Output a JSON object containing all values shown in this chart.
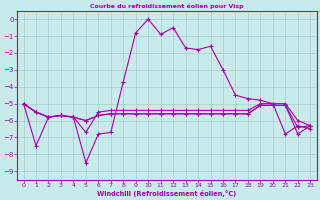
{
  "title": "Courbe du refroidissement éolien pour Visp",
  "xlabel": "Windchill (Refroidissement éolien,°C)",
  "background_color": "#c8eaea",
  "grid_color": "#aacccc",
  "line_color": "#aa00aa",
  "xlim": [
    -0.5,
    23.5
  ],
  "ylim": [
    -9.5,
    0.5
  ],
  "yticks": [
    0,
    -1,
    -2,
    -3,
    -4,
    -5,
    -6,
    -7,
    -8,
    -9
  ],
  "xticks": [
    0,
    1,
    2,
    3,
    4,
    5,
    6,
    7,
    8,
    9,
    10,
    11,
    12,
    13,
    14,
    15,
    16,
    17,
    18,
    19,
    20,
    21,
    22,
    23
  ],
  "line1_x": [
    0,
    1,
    2,
    3,
    4,
    5,
    6,
    7,
    8,
    9,
    10,
    11,
    12,
    13,
    14,
    15,
    16,
    17,
    18,
    19,
    20,
    21,
    22,
    23
  ],
  "line1_y": [
    -5.0,
    -7.5,
    -5.8,
    -5.7,
    -5.8,
    -8.5,
    -6.8,
    -6.7,
    -3.7,
    -0.8,
    0.0,
    -0.9,
    -0.5,
    -1.7,
    -1.8,
    -1.6,
    -3.0,
    -4.5,
    -4.7,
    -4.8,
    -5.0,
    -6.8,
    -6.3,
    -6.5
  ],
  "line2_x": [
    0,
    1,
    2,
    3,
    4,
    5,
    6,
    7,
    8,
    9,
    10,
    11,
    12,
    13,
    14,
    15,
    16,
    17,
    18,
    19,
    20,
    21,
    22,
    23
  ],
  "line2_y": [
    -5.0,
    -5.5,
    -5.8,
    -5.7,
    -5.8,
    -6.7,
    -5.5,
    -5.4,
    -5.4,
    -5.4,
    -5.4,
    -5.4,
    -5.4,
    -5.4,
    -5.4,
    -5.4,
    -5.4,
    -5.4,
    -5.4,
    -5.0,
    -5.0,
    -5.0,
    -6.0,
    -6.3
  ],
  "line3_x": [
    0,
    1,
    2,
    3,
    4,
    5,
    6,
    7,
    8,
    9,
    10,
    11,
    12,
    13,
    14,
    15,
    16,
    17,
    18,
    19,
    20,
    21,
    22,
    23
  ],
  "line3_y": [
    -5.0,
    -5.5,
    -5.8,
    -5.7,
    -5.8,
    -6.0,
    -5.7,
    -5.6,
    -5.6,
    -5.6,
    -5.6,
    -5.6,
    -5.6,
    -5.6,
    -5.6,
    -5.6,
    -5.6,
    -5.6,
    -5.6,
    -5.1,
    -5.1,
    -5.1,
    -6.4,
    -6.3
  ],
  "line4_x": [
    0,
    1,
    2,
    3,
    4,
    5,
    6,
    7,
    8,
    9,
    10,
    11,
    12,
    13,
    14,
    15,
    16,
    17,
    18,
    19,
    20,
    21,
    22,
    23
  ],
  "line4_y": [
    -5.0,
    -5.5,
    -5.8,
    -5.7,
    -5.8,
    -6.0,
    -5.7,
    -5.6,
    -5.6,
    -5.6,
    -5.6,
    -5.6,
    -5.6,
    -5.6,
    -5.6,
    -5.6,
    -5.6,
    -5.6,
    -5.6,
    -5.1,
    -5.1,
    -5.1,
    -6.8,
    -6.3
  ]
}
